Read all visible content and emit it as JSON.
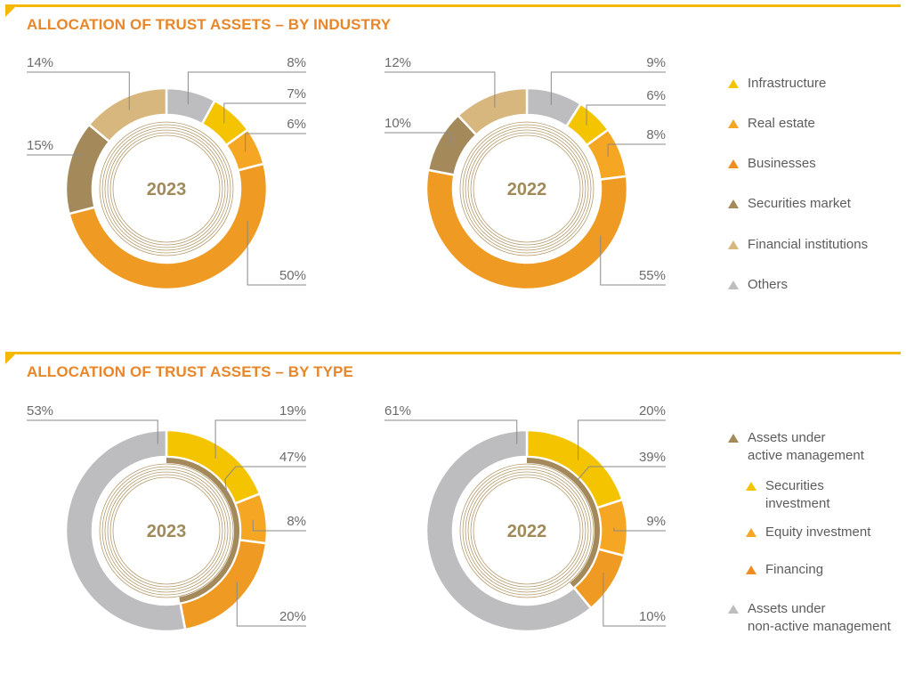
{
  "sections": [
    {
      "title": "ALLOCATION OF TRUST ASSETS – BY INDUSTRY"
    },
    {
      "title": "ALLOCATION OF TRUST ASSETS – BY TYPE"
    }
  ],
  "legends": {
    "industry": [
      {
        "label_lines": [
          "Infrastructure"
        ],
        "color": "#f5c400"
      },
      {
        "label_lines": [
          "Real estate"
        ],
        "color": "#f5a623"
      },
      {
        "label_lines": [
          "Businesses"
        ],
        "color": "#ef8c22"
      },
      {
        "label_lines": [
          "Securities market"
        ],
        "color": "#a48a5a"
      },
      {
        "label_lines": [
          "Financial institutions"
        ],
        "color": "#d7b77e"
      },
      {
        "label_lines": [
          "Others"
        ],
        "color": "#bdbdc0"
      }
    ],
    "type": [
      {
        "label_lines": [
          "Assets under",
          "active management"
        ],
        "color": "#a48a5a"
      },
      {
        "label_lines": [
          "Securities",
          "investment"
        ],
        "color": "#f5c400"
      },
      {
        "label_lines": [
          "Equity investment"
        ],
        "color": "#f5a623"
      },
      {
        "label_lines": [
          "Financing"
        ],
        "color": "#ef8c22"
      },
      {
        "label_lines": [
          "Assets under",
          "non-active management"
        ],
        "color": "#bdbdc0"
      }
    ]
  },
  "chart_data": [
    {
      "type": "pie",
      "section": "industry",
      "center_label": "2023",
      "slices": [
        {
          "name": "Others",
          "value": 8,
          "label": "8%",
          "color": "#bdbdc0"
        },
        {
          "name": "Infrastructure",
          "value": 7,
          "label": "7%",
          "color": "#f5c400"
        },
        {
          "name": "Real estate",
          "value": 6,
          "label": "6%",
          "color": "#f5a623"
        },
        {
          "name": "Businesses",
          "value": 50,
          "label": "50%",
          "color": "#ef9a22"
        },
        {
          "name": "Securities market",
          "value": 15,
          "label": "15%",
          "color": "#a48a5a"
        },
        {
          "name": "Financial institutions",
          "value": 14,
          "label": "14%",
          "color": "#d7b77e"
        }
      ]
    },
    {
      "type": "pie",
      "section": "industry",
      "center_label": "2022",
      "slices": [
        {
          "name": "Others",
          "value": 9,
          "label": "9%",
          "color": "#bdbdc0"
        },
        {
          "name": "Infrastructure",
          "value": 6,
          "label": "6%",
          "color": "#f5c400"
        },
        {
          "name": "Real estate",
          "value": 8,
          "label": "8%",
          "color": "#f5a623"
        },
        {
          "name": "Businesses",
          "value": 55,
          "label": "55%",
          "color": "#ef9a22"
        },
        {
          "name": "Securities market",
          "value": 10,
          "label": "10%",
          "color": "#a48a5a"
        },
        {
          "name": "Financial institutions",
          "value": 12,
          "label": "12%",
          "color": "#d7b77e"
        }
      ]
    },
    {
      "type": "pie",
      "section": "type",
      "center_label": "2023",
      "slices": [
        {
          "name": "Securities investment",
          "value": 19,
          "label": "19%",
          "color": "#f5c400"
        },
        {
          "name": "Equity investment",
          "value": 8,
          "label": "8%",
          "color": "#f5a623"
        },
        {
          "name": "Financing",
          "value": 20,
          "label": "20%",
          "color": "#ef9a22"
        },
        {
          "name": "Assets under non-active management",
          "value": 53,
          "label": "53%",
          "color": "#bdbdc0"
        }
      ],
      "inner_arc": {
        "name": "Assets under active management",
        "value": 47,
        "label": "47%",
        "color": "#a48a5a"
      }
    },
    {
      "type": "pie",
      "section": "type",
      "center_label": "2022",
      "slices": [
        {
          "name": "Securities investment",
          "value": 20,
          "label": "20%",
          "color": "#f5c400"
        },
        {
          "name": "Equity investment",
          "value": 9,
          "label": "9%",
          "color": "#f5a623"
        },
        {
          "name": "Financing",
          "value": 10,
          "label": "10%",
          "color": "#ef9a22"
        },
        {
          "name": "Assets under non-active management",
          "value": 61,
          "label": "61%",
          "color": "#bdbdc0"
        }
      ],
      "inner_arc": {
        "name": "Assets under active management",
        "value": 39,
        "label": "39%",
        "color": "#a48a5a"
      }
    }
  ]
}
